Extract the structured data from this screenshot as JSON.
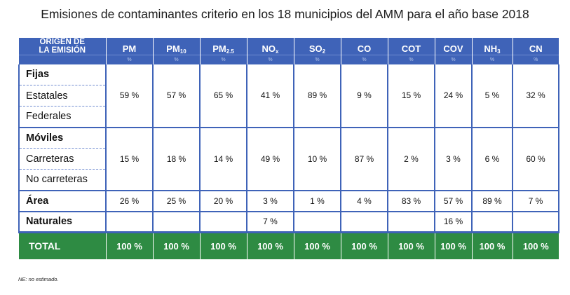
{
  "title": "Emisiones de contaminantes criterio en los 18 municipios del AMM para el año base 2018",
  "header": {
    "origin_line1": "ORIGEN DE",
    "origin_line2": "LA EMISIÓN",
    "columns": [
      {
        "base": "PM",
        "sub": ""
      },
      {
        "base": "PM",
        "sub": "10"
      },
      {
        "base": "PM",
        "sub": "2.5"
      },
      {
        "base": "NO",
        "sub": "x"
      },
      {
        "base": "SO",
        "sub": "2"
      },
      {
        "base": "CO",
        "sub": ""
      },
      {
        "base": "COT",
        "sub": ""
      },
      {
        "base": "COV",
        "sub": ""
      },
      {
        "base": "NH",
        "sub": "3"
      },
      {
        "base": "CN",
        "sub": ""
      }
    ],
    "unit": "%"
  },
  "rows": {
    "fijas": "Fijas",
    "estatales": "Estatales",
    "federales": "Federales",
    "fijas_values": [
      "59 %",
      "57 %",
      "65 %",
      "41 %",
      "89 %",
      "9 %",
      "15 %",
      "24 %",
      "5 %",
      "32 %"
    ],
    "moviles": "Móviles",
    "carreteras": "Carreteras",
    "no_carreteras": "No carreteras",
    "moviles_values": [
      "15 %",
      "18 %",
      "14 %",
      "49 %",
      "10 %",
      "87 %",
      "2 %",
      "3 %",
      "6 %",
      "60 %"
    ],
    "area": "Área",
    "area_values": [
      "26 %",
      "25 %",
      "20 %",
      "3 %",
      "1 %",
      "4 %",
      "83 %",
      "57 %",
      "89 %",
      "7 %"
    ],
    "naturales": "Naturales",
    "naturales_values": [
      "",
      "",
      "",
      "7 %",
      "",
      "",
      "",
      "16 %",
      "",
      ""
    ],
    "total": "TOTAL",
    "total_values": [
      "100 %",
      "100 %",
      "100 %",
      "100 %",
      "100 %",
      "100 %",
      "100 %",
      "100 %",
      "100 %",
      "100 %"
    ]
  },
  "note": "NE: no estimado.",
  "colors": {
    "header_blue": "#3f63b8",
    "total_green": "#2e8b43"
  }
}
